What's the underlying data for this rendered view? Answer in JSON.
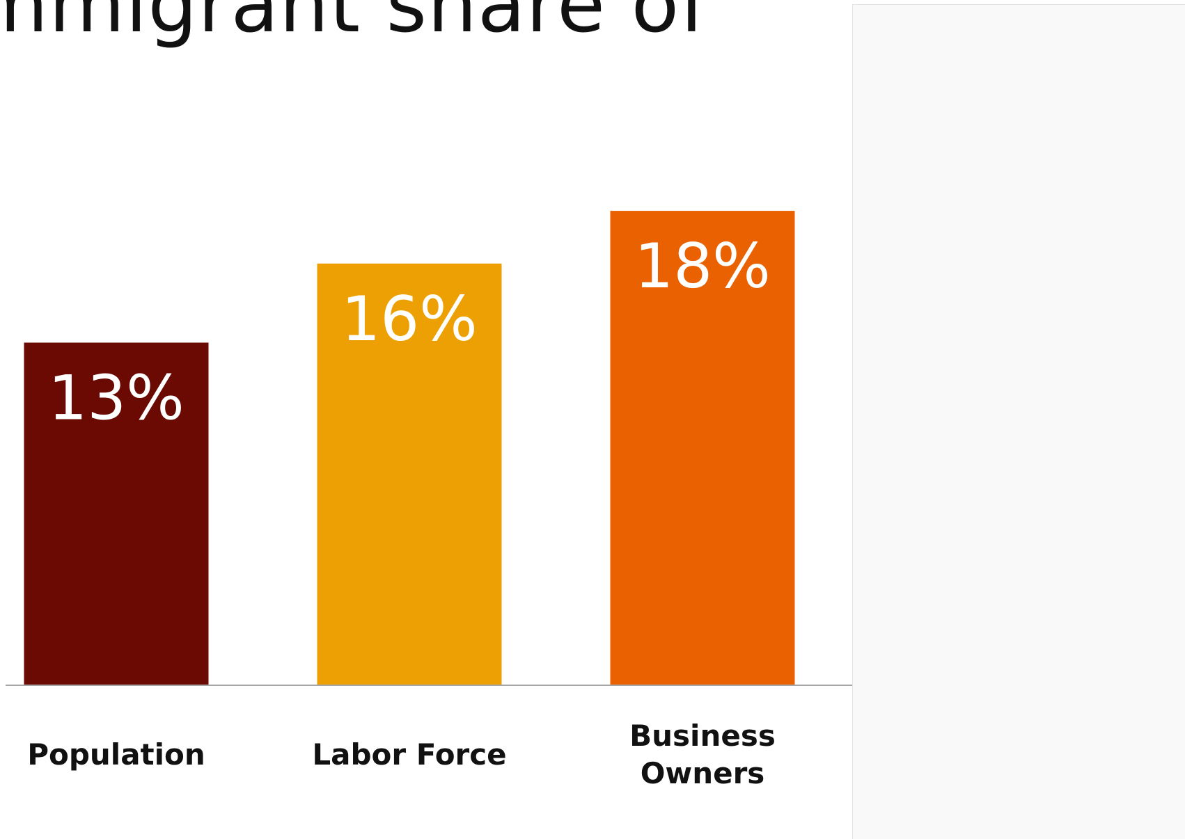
{
  "title": "mmigrant share of",
  "chart_data": {
    "type": "bar",
    "categories": [
      "Population",
      "Labor Force",
      "Business Owners"
    ],
    "category_lines": [
      [
        "Population"
      ],
      [
        "Labor Force"
      ],
      [
        "Business",
        "Owners"
      ]
    ],
    "values": [
      13,
      16,
      18
    ],
    "value_labels": [
      "13%",
      "16%",
      "18%"
    ],
    "colors": [
      "#6b0a02",
      "#eca003",
      "#ea6101"
    ],
    "ylim": [
      0,
      26
    ],
    "grid": false,
    "legend": "none"
  }
}
